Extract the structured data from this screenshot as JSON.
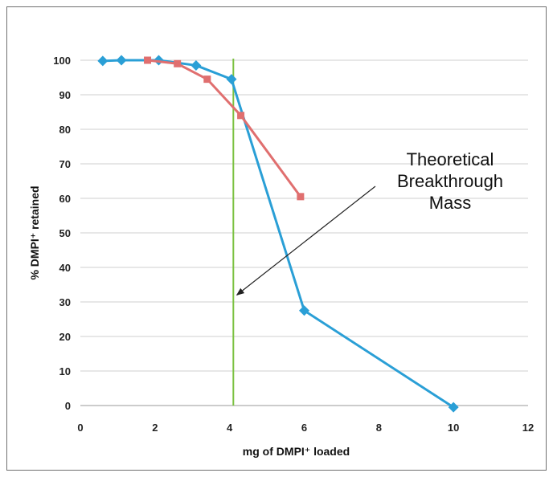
{
  "chart_data": {
    "type": "line",
    "xlabel": "mg of DMPI⁺ loaded",
    "ylabel": "% DMPI⁺ retained",
    "xlim": [
      0,
      12
    ],
    "ylim": [
      0,
      100
    ],
    "x_ticks": [
      0,
      2,
      4,
      6,
      8,
      10,
      12
    ],
    "y_ticks": [
      0,
      10,
      20,
      30,
      40,
      50,
      60,
      70,
      80,
      90,
      100
    ],
    "grid": true,
    "series": [
      {
        "color": "#2a9fd6",
        "marker": "diamond",
        "points": [
          [
            0.6,
            99.8
          ],
          [
            1.1,
            100
          ],
          [
            2.1,
            100
          ],
          [
            3.1,
            98.5
          ],
          [
            4.05,
            94.5
          ],
          [
            6.0,
            27.5
          ],
          [
            10.0,
            -0.5
          ]
        ]
      },
      {
        "color": "#e06f6f",
        "marker": "square",
        "points": [
          [
            1.8,
            100
          ],
          [
            2.6,
            99
          ],
          [
            3.4,
            94.5
          ],
          [
            4.3,
            84
          ],
          [
            5.9,
            60.5
          ]
        ]
      }
    ],
    "vertical_line": {
      "x": 4.1,
      "color": "#7cc242"
    },
    "annotation": {
      "lines": [
        "Theoretical",
        "Breakthrough",
        "Mass"
      ],
      "arrow_target": {
        "x": 4.15,
        "y": 32
      }
    }
  }
}
